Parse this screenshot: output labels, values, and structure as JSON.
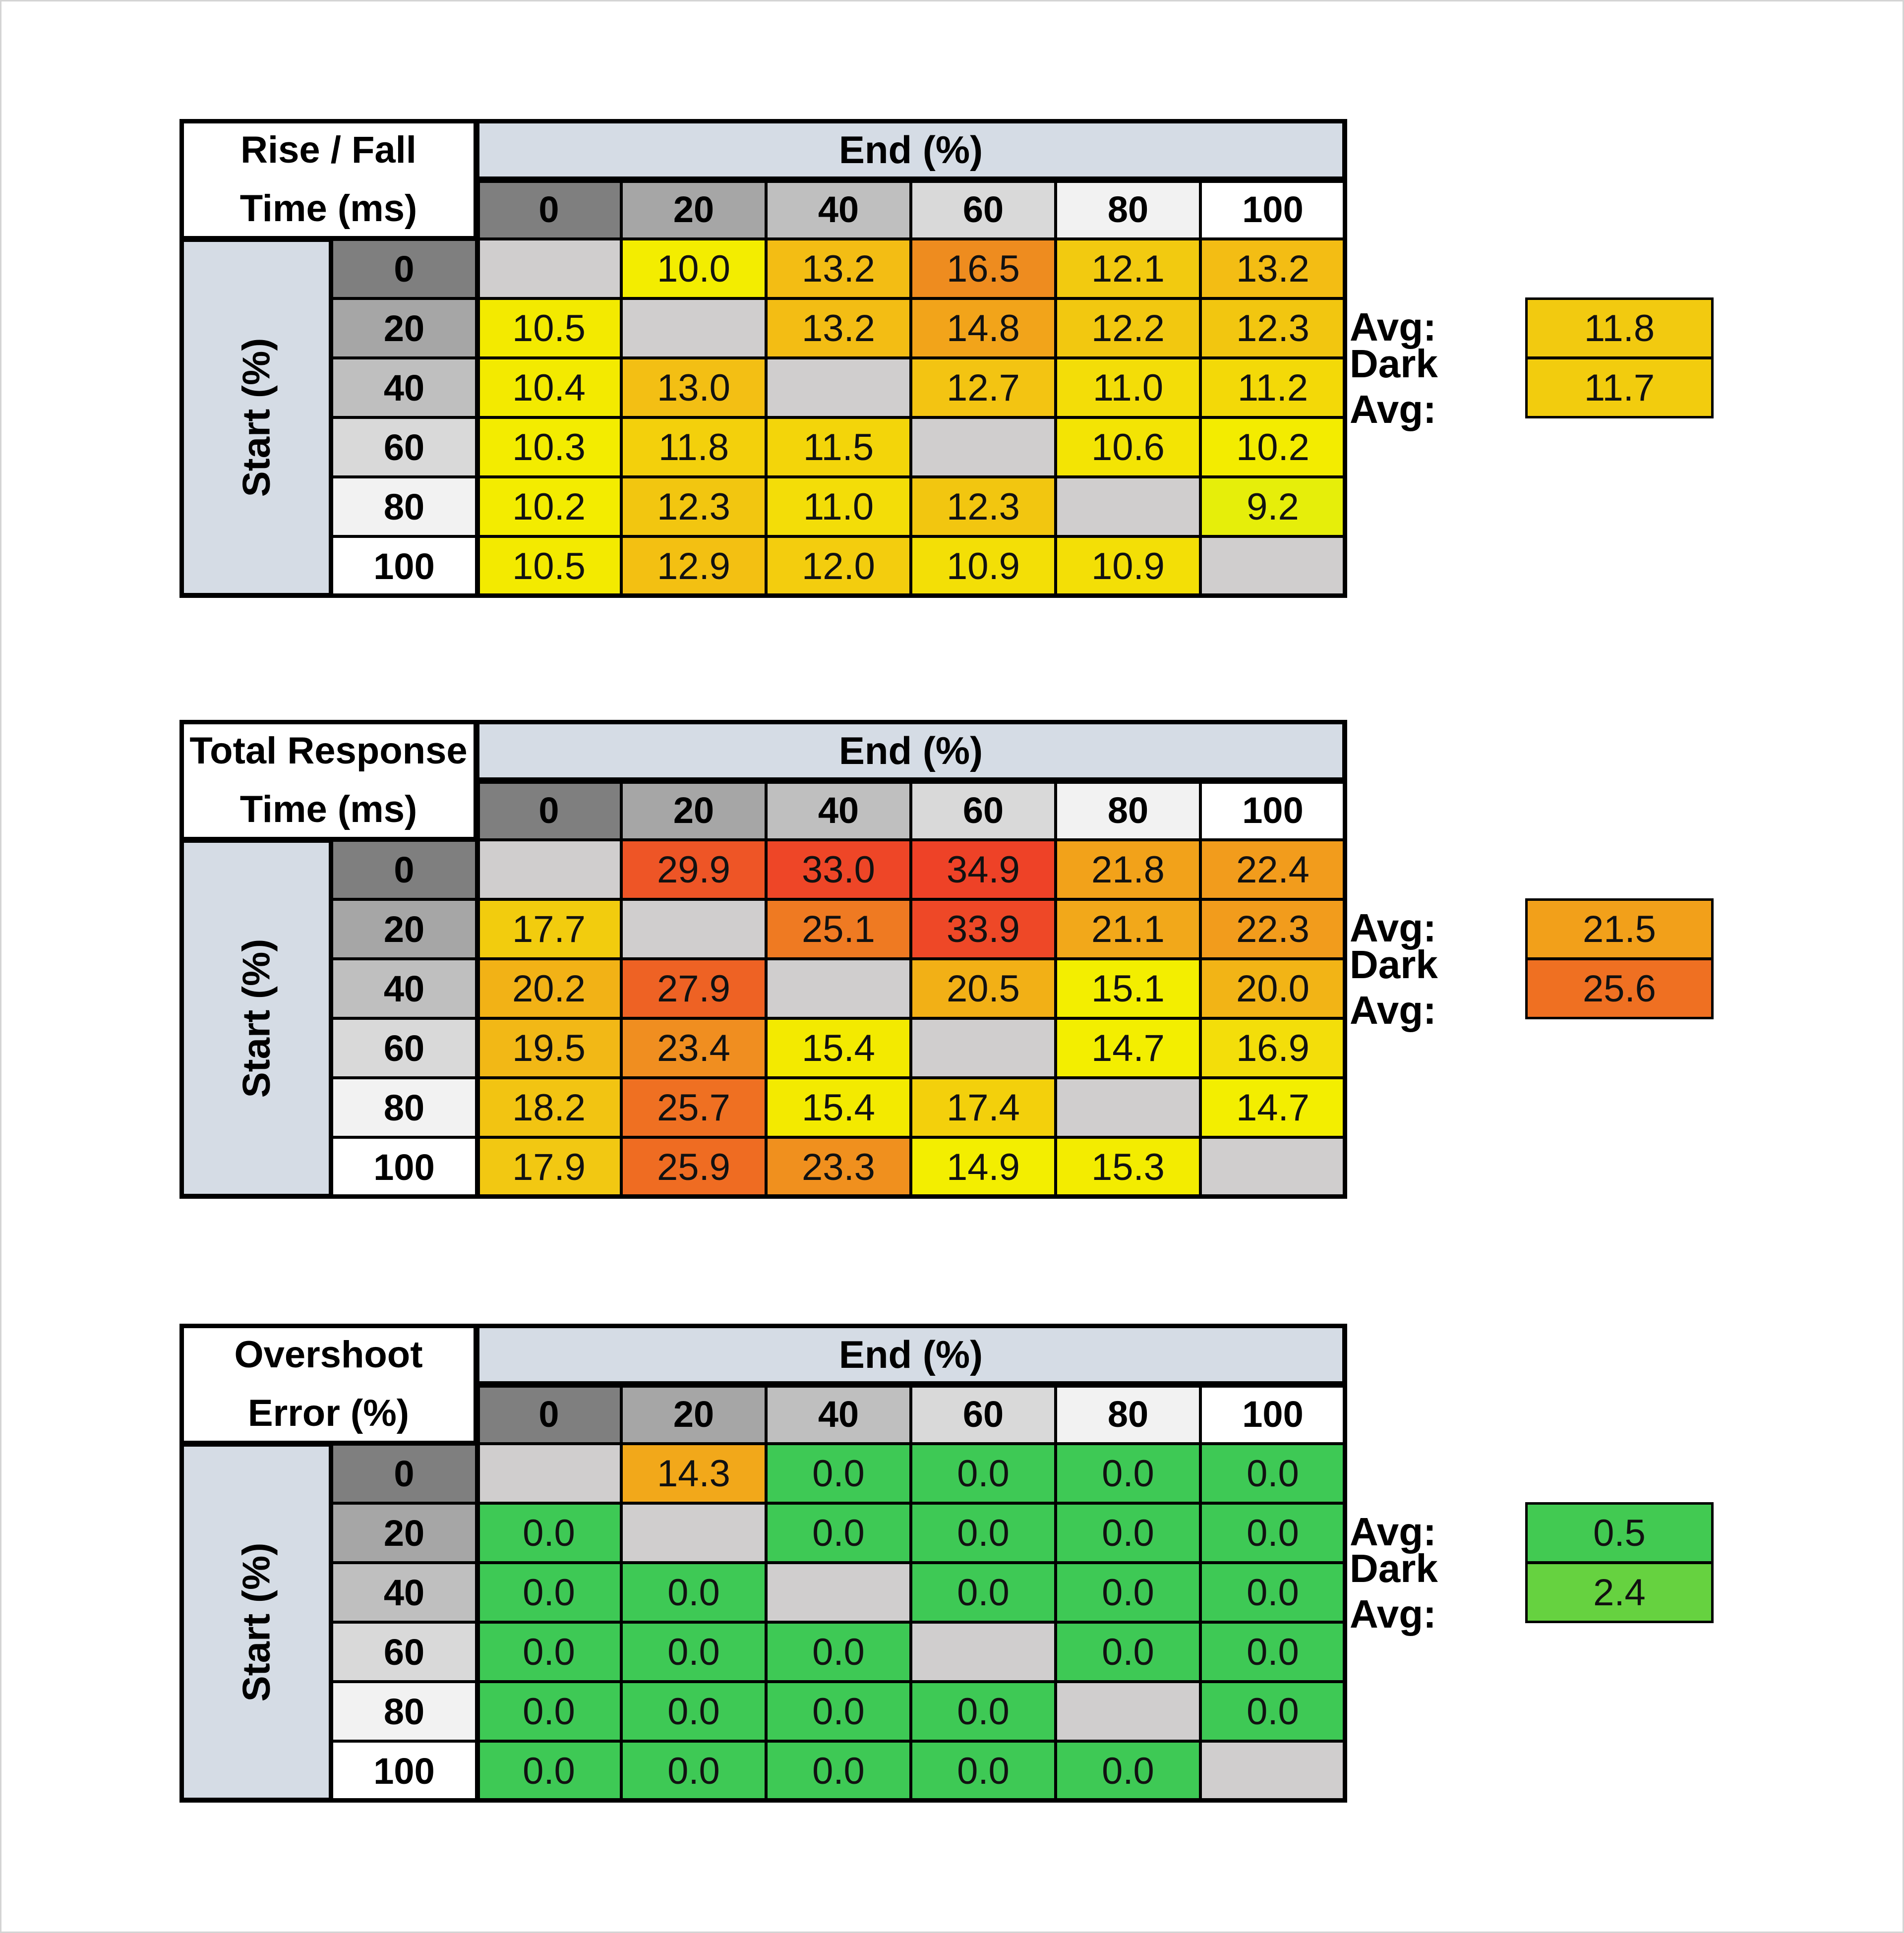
{
  "colors": {
    "diagonal": "#d0cece",
    "header_band": "#d5dce5",
    "header_shades": [
      "#7f7f7f",
      "#a6a6a6",
      "#bfbfbf",
      "#d9d9d9",
      "#f2f2f2",
      "#ffffff"
    ]
  },
  "chart_data": [
    {
      "type": "heatmap",
      "title_lines": [
        "Rise / Fall",
        "Time (ms)"
      ],
      "column_axis_label": "End (%)",
      "row_axis_label": "Start (%)",
      "columns": [
        "0",
        "20",
        "40",
        "60",
        "80",
        "100"
      ],
      "rows": [
        "0",
        "20",
        "40",
        "60",
        "80",
        "100"
      ],
      "values": [
        [
          null,
          "10.0",
          "13.2",
          "16.5",
          "12.1",
          "13.2"
        ],
        [
          "10.5",
          null,
          "13.2",
          "14.8",
          "12.2",
          "12.3"
        ],
        [
          "10.4",
          "13.0",
          null,
          "12.7",
          "11.0",
          "11.2"
        ],
        [
          "10.3",
          "11.8",
          "11.5",
          null,
          "10.6",
          "10.2"
        ],
        [
          "10.2",
          "12.3",
          "11.0",
          "12.3",
          null,
          "9.2"
        ],
        [
          "10.5",
          "12.9",
          "12.0",
          "10.9",
          "10.9",
          null
        ]
      ],
      "cell_colors": [
        [
          null,
          "#f3ed00",
          "#f3bd14",
          "#ee8c1f",
          "#f2ca10",
          "#f3bd14"
        ],
        [
          "#f3ea00",
          null,
          "#f3bd14",
          "#f2a41a",
          "#f2c810",
          "#f2c610"
        ],
        [
          "#f3ea00",
          "#f3bf14",
          null,
          "#f3c412",
          "#f3dd08",
          "#f3d908"
        ],
        [
          "#f3ec00",
          "#f3d00c",
          "#f3d50a",
          null,
          "#f3e404",
          "#f3ec00"
        ],
        [
          "#f3ec00",
          "#f2c610",
          "#f3dd08",
          "#f2c610",
          null,
          "#e6ee0a"
        ],
        [
          "#f3ea00",
          "#f3c012",
          "#f3cd0e",
          "#f3df06",
          "#f3df06",
          null
        ]
      ],
      "stats": [
        {
          "label": "Avg:",
          "value": "11.8",
          "color": "#f2ca10"
        },
        {
          "label": "Dark Avg:",
          "value": "11.7",
          "color": "#f2cc0e"
        }
      ]
    },
    {
      "type": "heatmap",
      "title_lines": [
        "Total Response",
        "Time (ms)"
      ],
      "column_axis_label": "End (%)",
      "row_axis_label": "Start (%)",
      "columns": [
        "0",
        "20",
        "40",
        "60",
        "80",
        "100"
      ],
      "rows": [
        "0",
        "20",
        "40",
        "60",
        "80",
        "100"
      ],
      "values": [
        [
          null,
          "29.9",
          "33.0",
          "34.9",
          "21.8",
          "22.4"
        ],
        [
          "17.7",
          null,
          "25.1",
          "33.9",
          "21.1",
          "22.3"
        ],
        [
          "20.2",
          "27.9",
          null,
          "20.5",
          "15.1",
          "20.0"
        ],
        [
          "19.5",
          "23.4",
          "15.4",
          null,
          "14.7",
          "16.9"
        ],
        [
          "18.2",
          "25.7",
          "15.4",
          "17.4",
          null,
          "14.7"
        ],
        [
          "17.9",
          "25.9",
          "23.3",
          "14.9",
          "15.3",
          null
        ]
      ],
      "cell_colors": [
        [
          null,
          "#ee5526",
          "#ee4627",
          "#ee4227",
          "#f2a21a",
          "#f29c1c"
        ],
        [
          "#f2cc0e",
          null,
          "#ef7a22",
          "#ee4827",
          "#f2a81a",
          "#f29c1c"
        ],
        [
          "#f2b216",
          "#ee6224",
          null,
          "#f2b016",
          "#f3ee00",
          "#f2b416"
        ],
        [
          "#f2b816",
          "#f08e20",
          "#f3ea00",
          null,
          "#f3ee00",
          "#f3de0a"
        ],
        [
          "#f2c412",
          "#ef7022",
          "#f3ea00",
          "#f3d00c",
          null,
          "#f3ee00"
        ],
        [
          "#f2c812",
          "#ef6c22",
          "#f0901e",
          "#f3ee00",
          "#f3ec00",
          null
        ]
      ],
      "stats": [
        {
          "label": "Avg:",
          "value": "21.5",
          "color": "#f2a01a"
        },
        {
          "label": "Dark Avg:",
          "value": "25.6",
          "color": "#ef7022"
        }
      ]
    },
    {
      "type": "heatmap",
      "title_lines": [
        "Overshoot",
        "Error (%)"
      ],
      "column_axis_label": "End (%)",
      "row_axis_label": "Start (%)",
      "columns": [
        "0",
        "20",
        "40",
        "60",
        "80",
        "100"
      ],
      "rows": [
        "0",
        "20",
        "40",
        "60",
        "80",
        "100"
      ],
      "values": [
        [
          null,
          "14.3",
          "0.0",
          "0.0",
          "0.0",
          "0.0"
        ],
        [
          "0.0",
          null,
          "0.0",
          "0.0",
          "0.0",
          "0.0"
        ],
        [
          "0.0",
          "0.0",
          null,
          "0.0",
          "0.0",
          "0.0"
        ],
        [
          "0.0",
          "0.0",
          "0.0",
          null,
          "0.0",
          "0.0"
        ],
        [
          "0.0",
          "0.0",
          "0.0",
          "0.0",
          null,
          "0.0"
        ],
        [
          "0.0",
          "0.0",
          "0.0",
          "0.0",
          "0.0",
          null
        ]
      ],
      "cell_colors": [
        [
          null,
          "#f2a81a",
          "#3ec955",
          "#3ec955",
          "#3ec955",
          "#3ec955"
        ],
        [
          "#3ec955",
          null,
          "#3ec955",
          "#3ec955",
          "#3ec955",
          "#3ec955"
        ],
        [
          "#3ec955",
          "#3ec955",
          null,
          "#3ec955",
          "#3ec955",
          "#3ec955"
        ],
        [
          "#3ec955",
          "#3ec955",
          "#3ec955",
          null,
          "#3ec955",
          "#3ec955"
        ],
        [
          "#3ec955",
          "#3ec955",
          "#3ec955",
          "#3ec955",
          null,
          "#3ec955"
        ],
        [
          "#3ec955",
          "#3ec955",
          "#3ec955",
          "#3ec955",
          "#3ec955",
          null
        ]
      ],
      "stats": [
        {
          "label": "Avg:",
          "value": "0.5",
          "color": "#42ca52"
        },
        {
          "label": "Dark Avg:",
          "value": "2.4",
          "color": "#66d240"
        }
      ]
    }
  ]
}
